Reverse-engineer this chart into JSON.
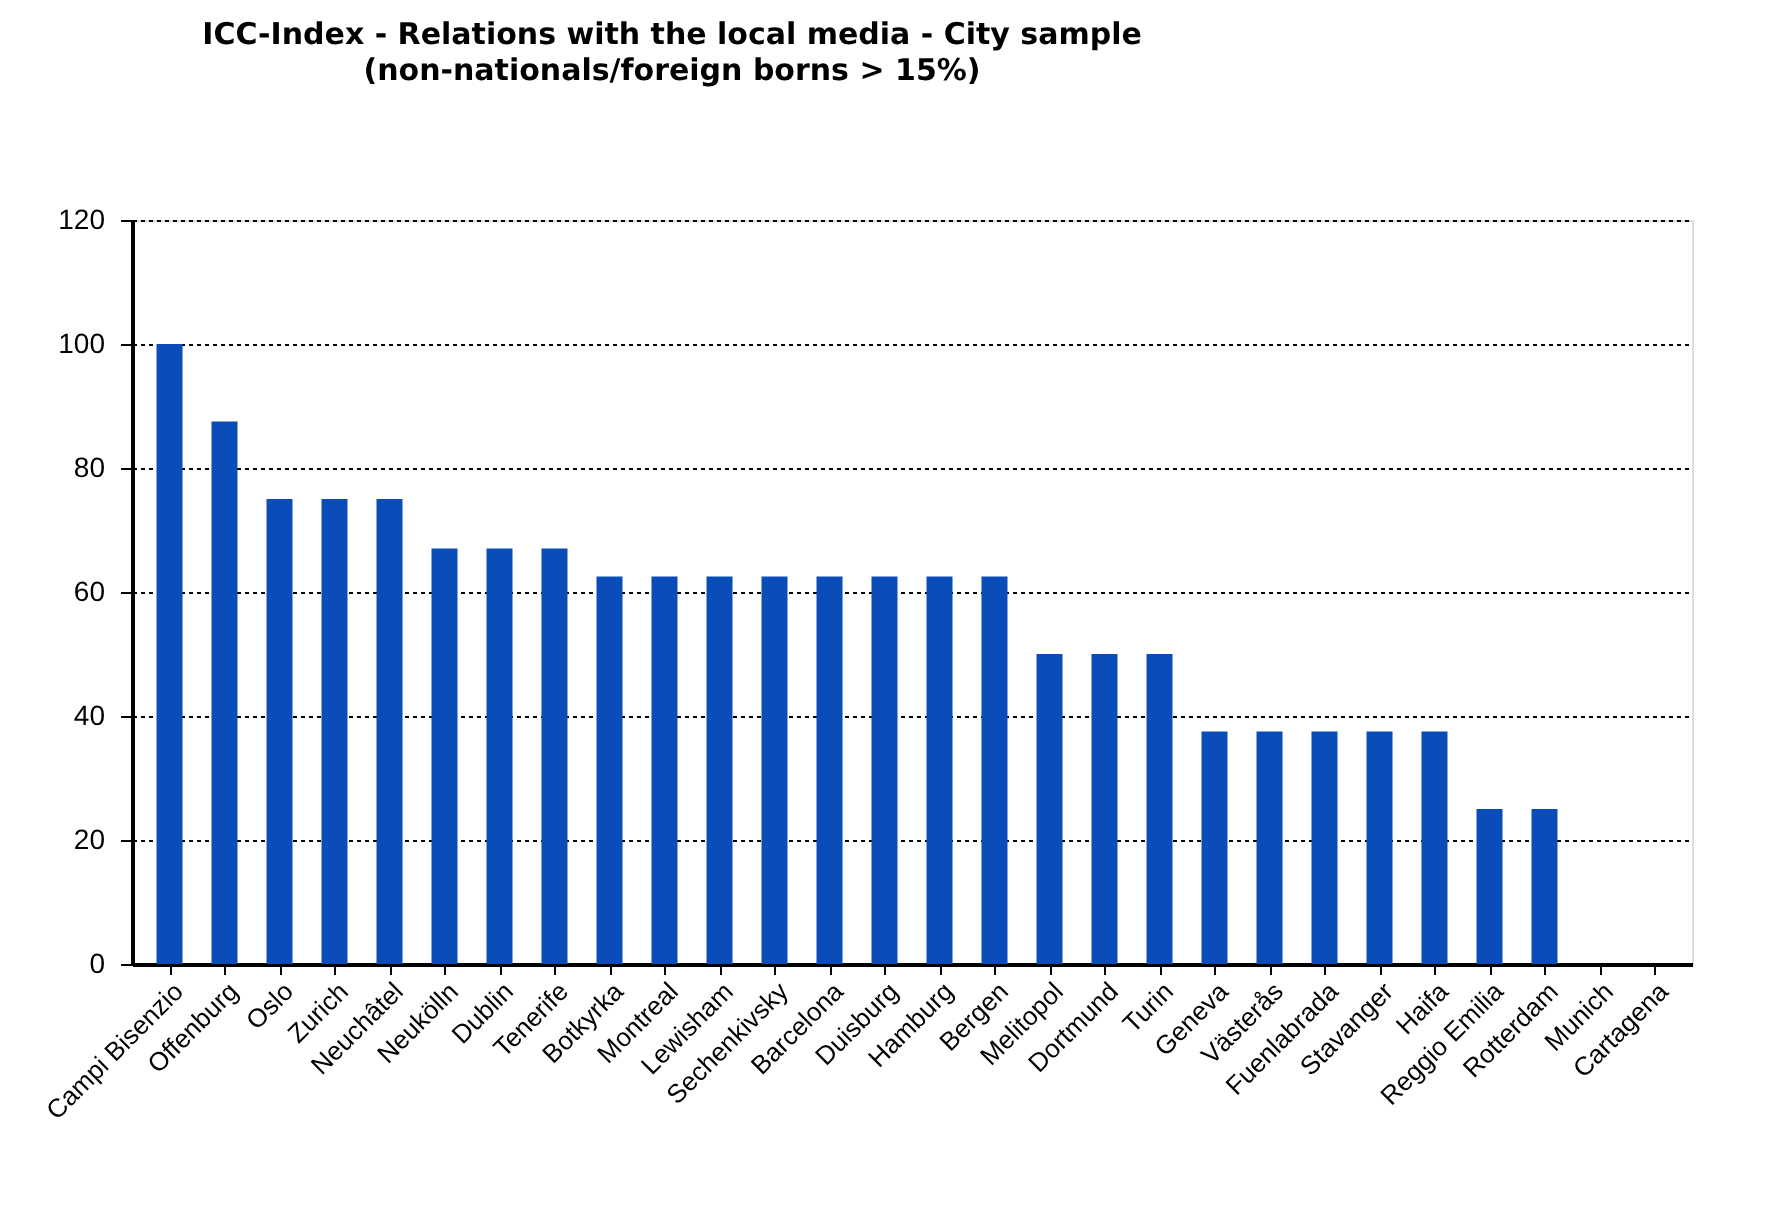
{
  "chart_data": {
    "type": "bar",
    "title": "ICC-Index - Relations with the  local media - City sample",
    "subtitle": "(non-nationals/foreign borns > 15%)",
    "categories": [
      "Campi Bisenzio",
      "Offenburg",
      "Oslo",
      "Zurich",
      "Neuchâtel",
      "Neukölln",
      "Dublin",
      "Tenerife",
      "Botkyrka",
      "Montreal",
      "Lewisham",
      "Sechenkivsky",
      "Barcelona",
      "Duisburg",
      "Hamburg",
      "Bergen",
      "Melitopol",
      "Dortmund",
      "Turin",
      "Geneva",
      "Västerås",
      "Fuenlabrada",
      "Stavanger",
      "Haifa",
      "Reggio Emilia",
      "Rotterdam",
      "Munich",
      "Cartagena"
    ],
    "values": [
      100,
      87.5,
      75,
      75,
      75,
      67,
      67,
      67,
      62.5,
      62.5,
      62.5,
      62.5,
      62.5,
      62.5,
      62.5,
      62.5,
      50,
      50,
      50,
      37.5,
      37.5,
      37.5,
      37.5,
      37.5,
      25,
      25,
      0,
      0
    ],
    "color": "#0a4cb8",
    "ylim": [
      0,
      120
    ],
    "yticks": [
      0,
      20,
      40,
      60,
      80,
      100,
      120
    ],
    "grid": "y"
  }
}
